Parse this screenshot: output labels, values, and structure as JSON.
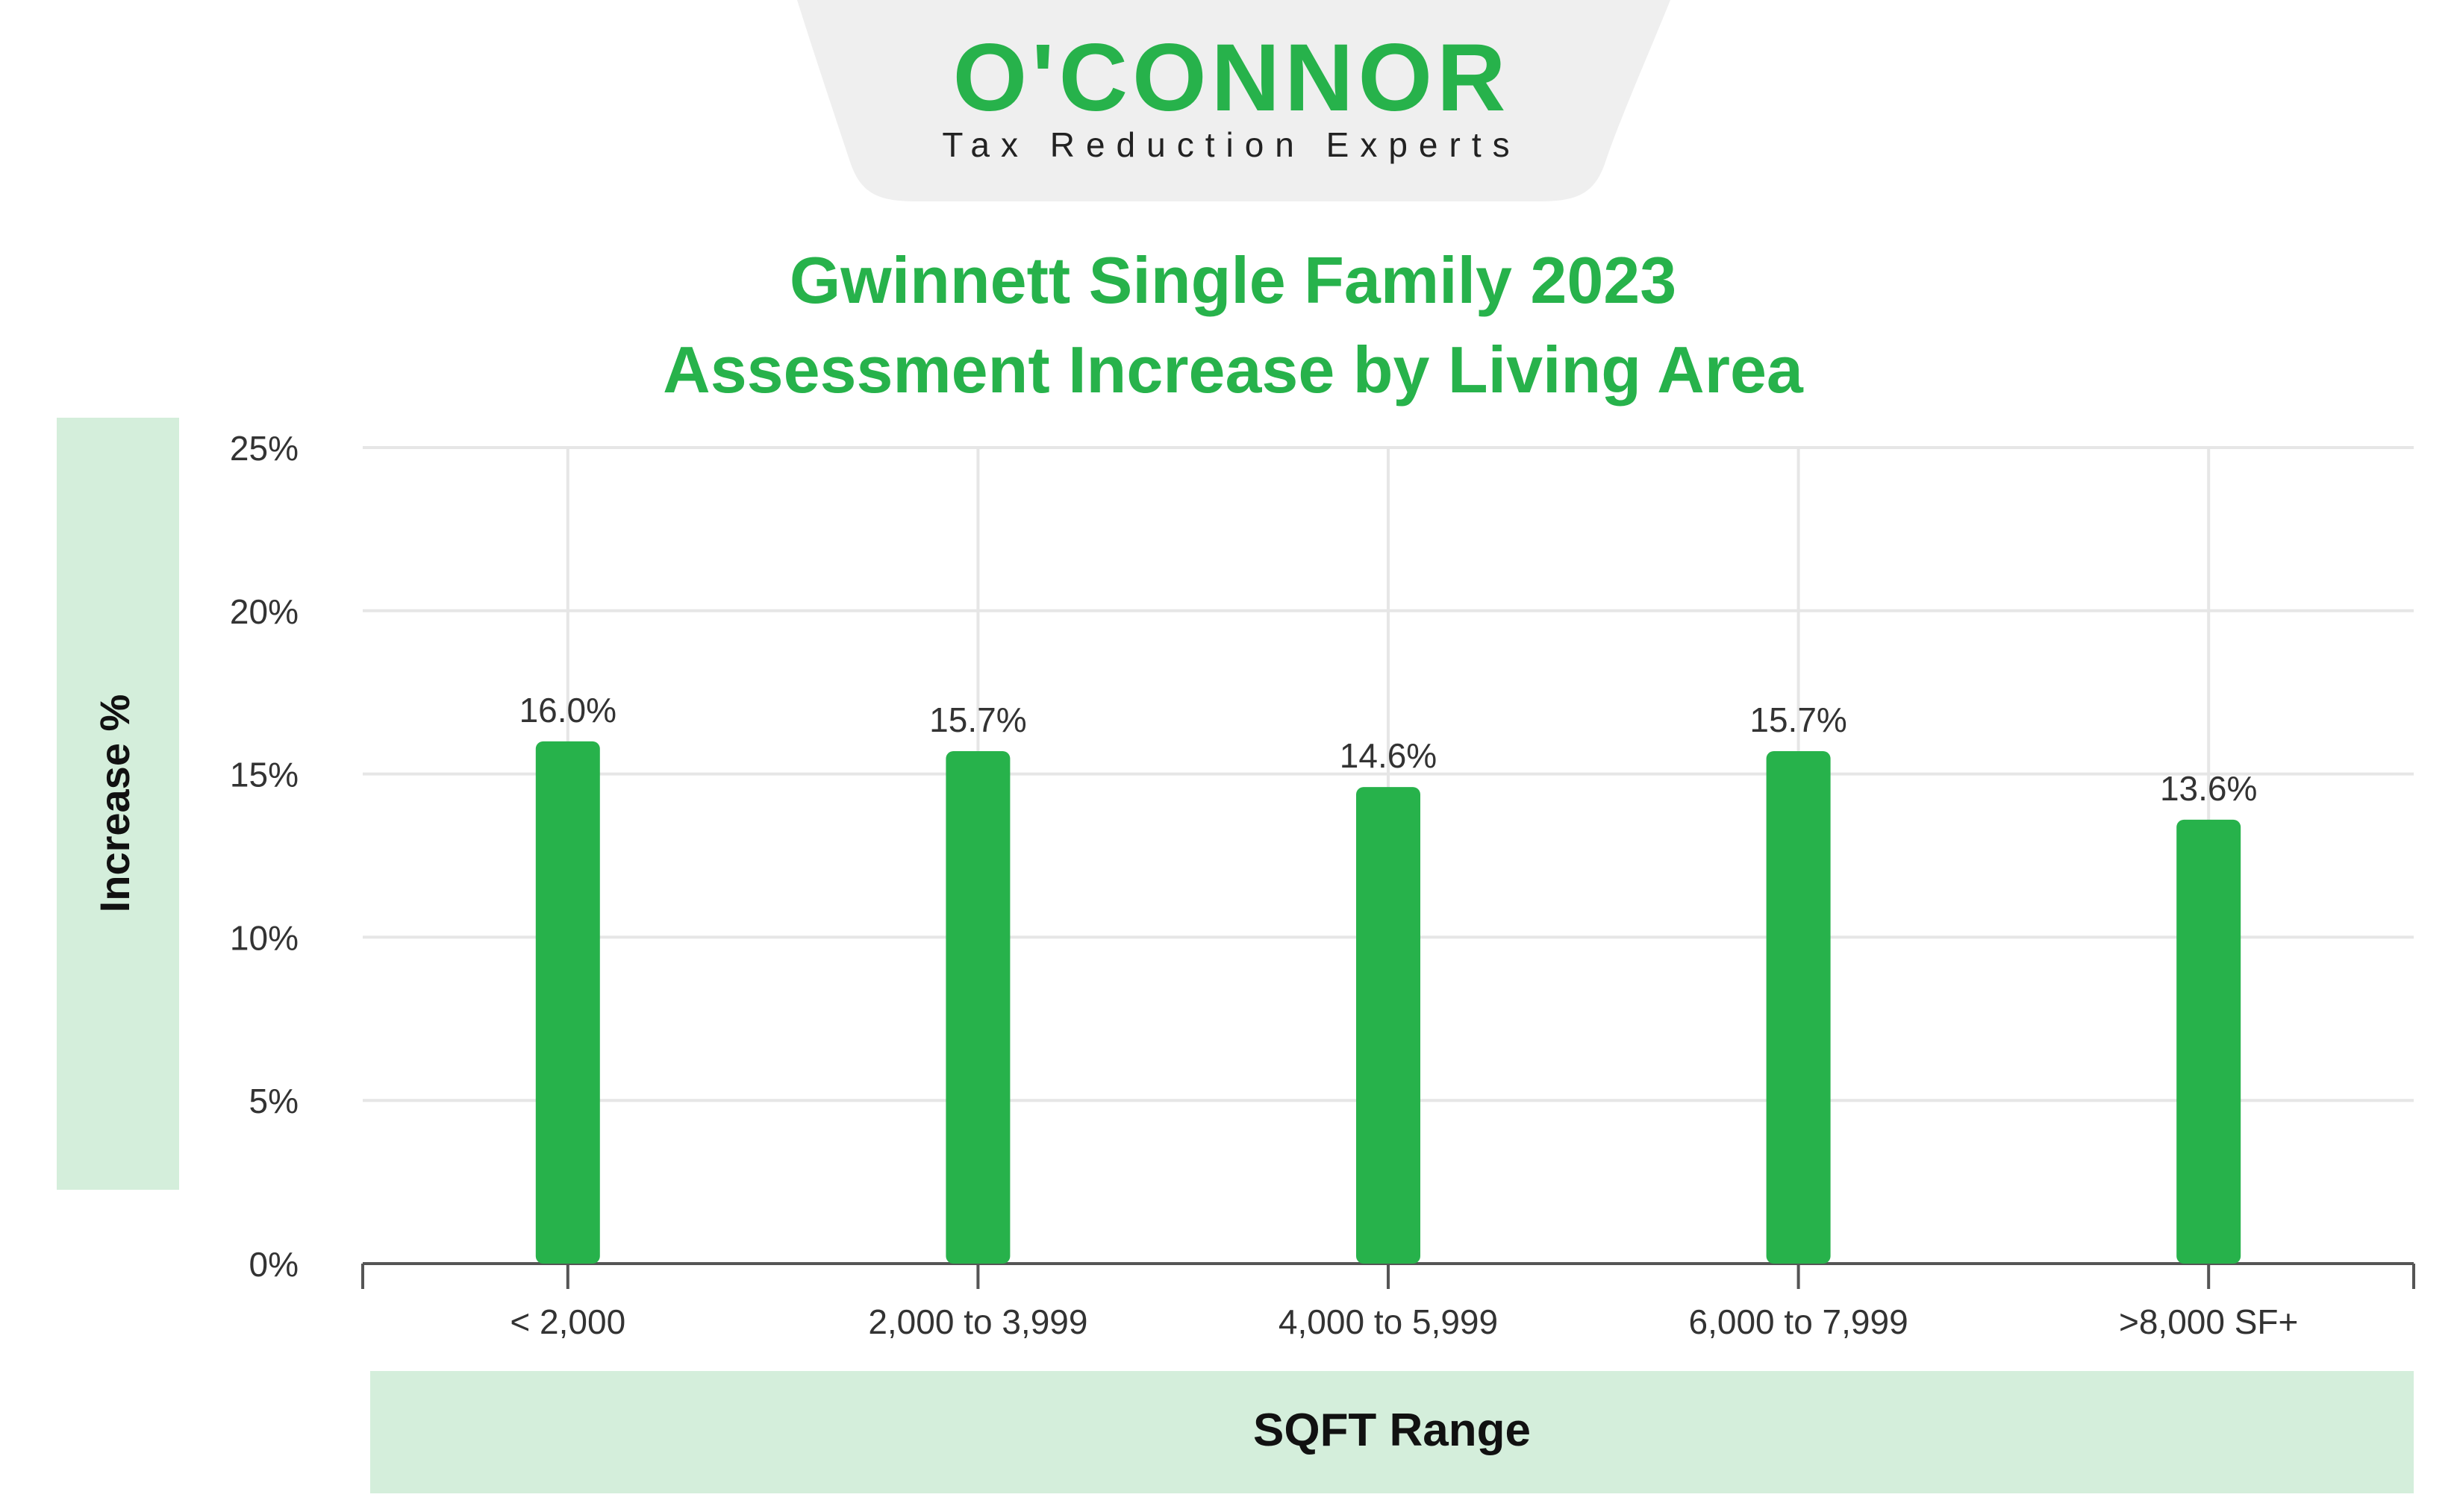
{
  "brand": {
    "logo_text": "O'CONNOR",
    "tagline": "Tax Reduction Experts"
  },
  "colors": {
    "brand_green": "#27b24b",
    "band_green": "#d4eedb",
    "grid": "#e6e6e6",
    "axis": "#555555",
    "text": "#333333",
    "logo_bg": "#efefef"
  },
  "chart_data": {
    "type": "bar",
    "title_line1": "Gwinnett Single Family 2023",
    "title_line2": "Assessment Increase by Living Area",
    "xlabel": "SQFT Range",
    "ylabel": "Increase %",
    "categories": [
      "< 2,000",
      "2,000 to 3,999",
      "4,000 to 5,999",
      "6,000 to 7,999",
      ">8,000 SF+"
    ],
    "values": [
      16.0,
      15.7,
      14.6,
      15.7,
      13.6
    ],
    "value_labels": [
      "16.0%",
      "15.7%",
      "14.6%",
      "15.7%",
      "13.6%"
    ],
    "yticks": [
      0,
      5,
      10,
      15,
      20,
      25
    ],
    "ytick_labels": [
      "0%",
      "5%",
      "10%",
      "15%",
      "20%",
      "25%"
    ],
    "ylim": [
      0,
      25
    ],
    "grid": true,
    "legend": "none"
  }
}
